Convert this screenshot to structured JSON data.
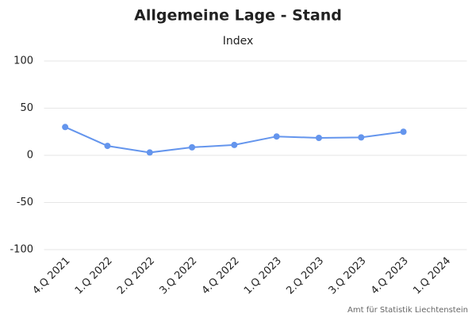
{
  "chart_data": {
    "type": "line",
    "title": "Allgemeine Lage - Stand",
    "subtitle": "Index",
    "categories": [
      "4.Q 2021",
      "1.Q 2022",
      "2.Q 2022",
      "3.Q 2022",
      "4.Q 2022",
      "1.Q 2023",
      "2.Q 2023",
      "3.Q 2023",
      "4.Q 2023",
      "1.Q 2024"
    ],
    "series": [
      {
        "name": "Index",
        "color": "#6495ed",
        "values": [
          30,
          10,
          3,
          8.5,
          11,
          20,
          18.5,
          19,
          25,
          null
        ]
      }
    ],
    "ylim": [
      -100,
      100
    ],
    "yticks": [
      -100,
      -50,
      0,
      50,
      100
    ],
    "grid": true,
    "credit": "Amt für Statistik Liechtenstein"
  }
}
